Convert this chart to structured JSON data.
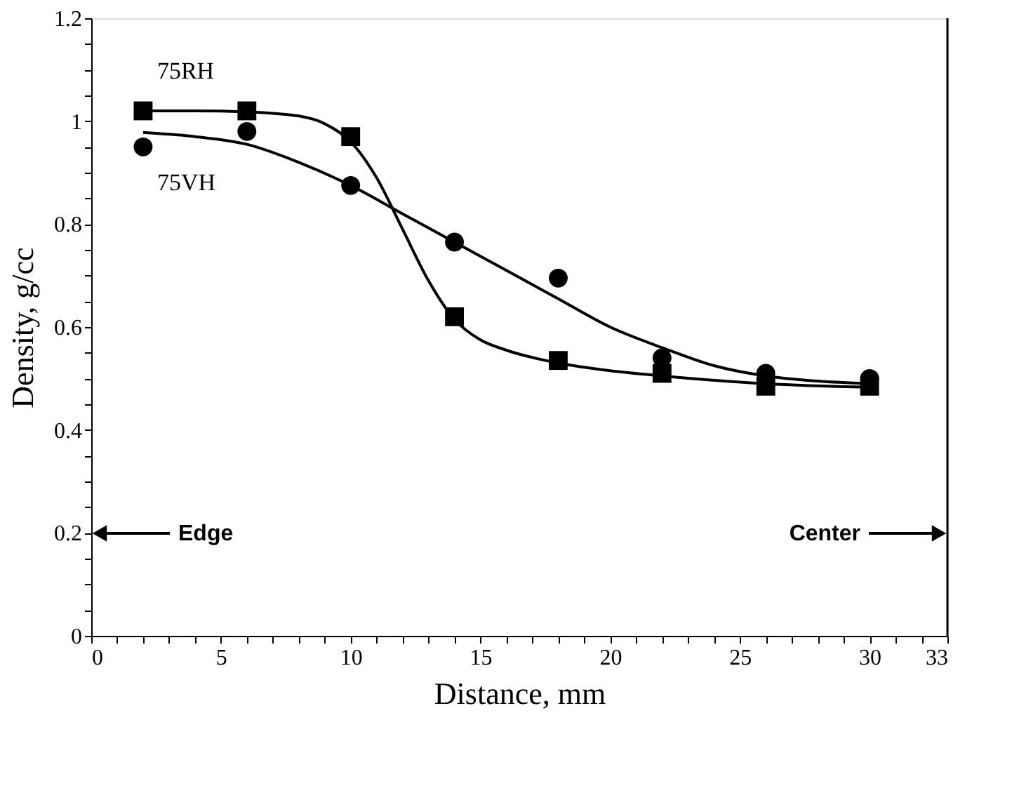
{
  "chart_data": {
    "type": "scatter",
    "xlabel": "Distance, mm",
    "ylabel": "Density, g/cc",
    "x": [
      2,
      6,
      10,
      14,
      18,
      22,
      26,
      30
    ],
    "series": [
      {
        "name": "75RH",
        "color": "#000000",
        "marker": "square",
        "values": [
          1.02,
          1.02,
          0.97,
          0.62,
          0.535,
          0.51,
          0.485,
          0.485
        ]
      },
      {
        "name": "75VH",
        "color": "#000000",
        "marker": "circle",
        "values": [
          0.95,
          0.98,
          0.875,
          0.765,
          0.695,
          0.54,
          0.51,
          0.5
        ]
      },
      {
        "type": "line",
        "color": "#000000",
        "x": [
          2,
          4,
          6,
          8,
          9,
          10,
          11,
          12,
          13,
          14,
          15,
          16,
          18,
          20,
          22,
          26,
          30
        ],
        "values": [
          1.02,
          1.02,
          1.018,
          1.01,
          0.995,
          0.96,
          0.89,
          0.79,
          0.69,
          0.615,
          0.575,
          0.555,
          0.53,
          0.515,
          0.505,
          0.49,
          0.483
        ]
      },
      {
        "type": "line",
        "color": "#000000",
        "x": [
          2,
          4,
          6,
          8,
          10,
          12,
          14,
          16,
          18,
          20,
          22,
          24,
          26,
          28,
          30
        ],
        "values": [
          0.978,
          0.97,
          0.955,
          0.92,
          0.875,
          0.82,
          0.765,
          0.71,
          0.655,
          0.6,
          0.56,
          0.525,
          0.505,
          0.495,
          0.49
        ]
      }
    ],
    "annotations": [
      "Edge",
      "Center"
    ],
    "xlim": [
      0,
      33
    ],
    "xticks": [
      0,
      {
        "value": 1,
        "label": null
      },
      {
        "value": 2,
        "label": null
      },
      {
        "value": 3,
        "label": null
      },
      {
        "value": 4,
        "label": null
      },
      5,
      {
        "value": 6,
        "label": null
      },
      {
        "value": 7,
        "label": null
      },
      {
        "value": 8,
        "label": null
      },
      {
        "value": 9,
        "label": null
      },
      10,
      {
        "value": 11,
        "label": null
      },
      {
        "value": 12,
        "label": null
      },
      {
        "value": 13,
        "label": null
      },
      {
        "value": 14,
        "label": null
      },
      15,
      {
        "value": 16,
        "label": null
      },
      {
        "value": 17,
        "label": null
      },
      {
        "value": 18,
        "label": null
      },
      {
        "value": 19,
        "label": null
      },
      20,
      {
        "value": 21,
        "label": null
      },
      {
        "value": 22,
        "label": null
      },
      {
        "value": 23,
        "label": null
      },
      {
        "value": 24,
        "label": null
      },
      25,
      {
        "value": 26,
        "label": null
      },
      {
        "value": 27,
        "label": null
      },
      {
        "value": 28,
        "label": null
      },
      {
        "value": 29,
        "label": null
      },
      30,
      {
        "value": 31,
        "label": null
      },
      {
        "value": 32,
        "label": null
      },
      33
    ],
    "ylim": [
      0,
      1.2
    ],
    "yticks": [
      0,
      {
        "value": 0.05,
        "label": null
      },
      {
        "value": 0.1,
        "label": null
      },
      {
        "value": 0.15,
        "label": null
      },
      0.2,
      {
        "value": 0.25,
        "label": null
      },
      {
        "value": 0.3,
        "label": null
      },
      {
        "value": 0.35,
        "label": null
      },
      0.4,
      {
        "value": 0.45,
        "label": null
      },
      {
        "value": 0.5,
        "label": null
      },
      {
        "value": 0.55,
        "label": null
      },
      0.6,
      {
        "value": 0.65,
        "label": null
      },
      {
        "value": 0.7,
        "label": null
      },
      {
        "value": 0.75,
        "label": null
      },
      0.8,
      {
        "value": 0.85,
        "label": null
      },
      {
        "value": 0.9,
        "label": null
      },
      {
        "value": 0.95,
        "label": null
      },
      1,
      {
        "value": 1.05,
        "label": null
      },
      {
        "value": 1.1,
        "label": null
      },
      {
        "value": 1.15,
        "label": null
      },
      1.2
    ],
    "grid": false,
    "legend": false
  }
}
